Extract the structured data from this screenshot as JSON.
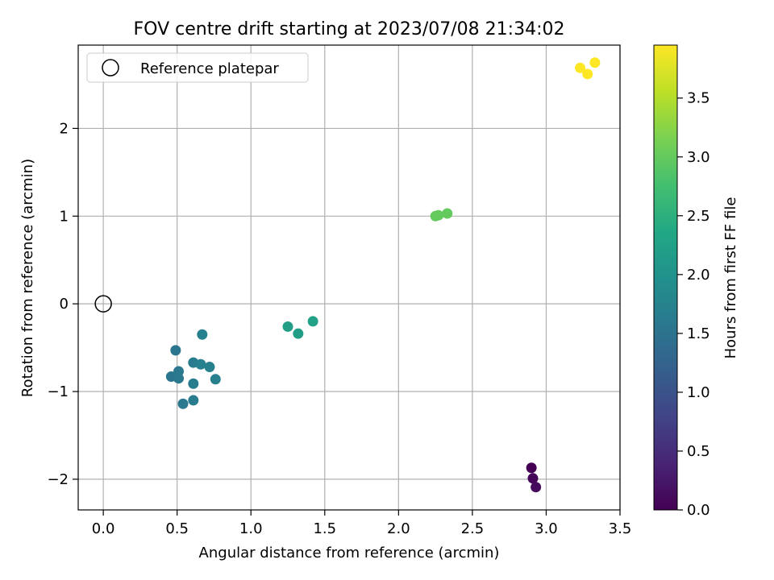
{
  "chart_data": {
    "type": "scatter",
    "title": "FOV centre drift starting at 2023/07/08 21:34:02",
    "xlabel": "Angular distance from reference (arcmin)",
    "ylabel": "Rotation from reference (arcmin)",
    "xlim": [
      -0.17,
      3.5
    ],
    "ylim": [
      -2.35,
      2.95
    ],
    "xticks": [
      0.0,
      0.5,
      1.0,
      1.5,
      2.0,
      2.5,
      3.0,
      3.5
    ],
    "xtick_labels": [
      "0.0",
      "0.5",
      "1.0",
      "1.5",
      "2.0",
      "2.5",
      "3.0",
      "3.5"
    ],
    "yticks": [
      -2,
      -1,
      0,
      1,
      2
    ],
    "ytick_labels": [
      "−2",
      "−1",
      "0",
      "1",
      "2"
    ],
    "grid": true,
    "legend": {
      "placement": "top-left",
      "entries": [
        {
          "label": "Reference platepar",
          "marker": "open-circle"
        }
      ]
    },
    "reference_point": {
      "x": 0.0,
      "y": 0.0
    },
    "colorbar": {
      "label": "Hours from first FF file",
      "colormap": "viridis",
      "range": [
        0.0,
        3.95
      ],
      "ticks": [
        0.0,
        0.5,
        1.0,
        1.5,
        2.0,
        2.5,
        3.0,
        3.5
      ],
      "tick_labels": [
        "0.0",
        "0.5",
        "1.0",
        "1.5",
        "2.0",
        "2.5",
        "3.0",
        "3.5"
      ]
    },
    "points": [
      {
        "x": 2.9,
        "y": -1.87,
        "c": 0.0
      },
      {
        "x": 2.91,
        "y": -1.99,
        "c": 0.05
      },
      {
        "x": 2.93,
        "y": -2.09,
        "c": 0.1
      },
      {
        "x": 0.49,
        "y": -0.53,
        "c": 1.55
      },
      {
        "x": 0.46,
        "y": -0.83,
        "c": 1.55
      },
      {
        "x": 0.51,
        "y": -0.77,
        "c": 1.6
      },
      {
        "x": 0.51,
        "y": -0.85,
        "c": 1.6
      },
      {
        "x": 0.54,
        "y": -1.14,
        "c": 1.6
      },
      {
        "x": 0.61,
        "y": -0.67,
        "c": 1.65
      },
      {
        "x": 0.61,
        "y": -0.91,
        "c": 1.65
      },
      {
        "x": 0.61,
        "y": -1.1,
        "c": 1.65
      },
      {
        "x": 0.66,
        "y": -0.69,
        "c": 1.7
      },
      {
        "x": 0.67,
        "y": -0.35,
        "c": 1.7
      },
      {
        "x": 0.72,
        "y": -0.72,
        "c": 1.7
      },
      {
        "x": 0.76,
        "y": -0.86,
        "c": 1.7
      },
      {
        "x": 1.25,
        "y": -0.26,
        "c": 2.2
      },
      {
        "x": 1.32,
        "y": -0.34,
        "c": 2.2
      },
      {
        "x": 1.42,
        "y": -0.2,
        "c": 2.25
      },
      {
        "x": 2.25,
        "y": 1.0,
        "c": 3.0
      },
      {
        "x": 2.27,
        "y": 1.01,
        "c": 3.0
      },
      {
        "x": 2.33,
        "y": 1.03,
        "c": 3.0
      },
      {
        "x": 3.23,
        "y": 2.69,
        "c": 3.95
      },
      {
        "x": 3.28,
        "y": 2.62,
        "c": 3.95
      },
      {
        "x": 3.33,
        "y": 2.75,
        "c": 3.95
      }
    ]
  }
}
